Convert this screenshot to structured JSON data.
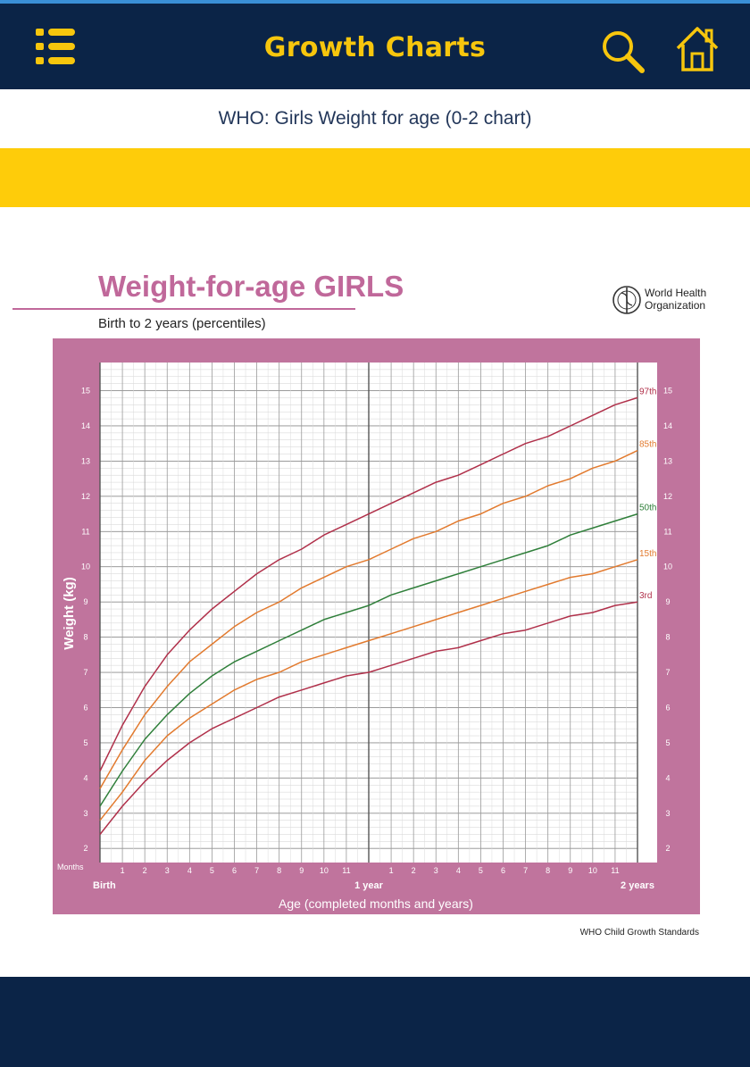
{
  "app": {
    "title": "Growth Charts",
    "subtitle": "WHO: Girls Weight for age (0-2 chart)",
    "icons": {
      "menu": "menu-list-icon",
      "search": "search-icon",
      "home": "home-icon"
    }
  },
  "colors": {
    "appbar": "#0b2447",
    "accent": "#f7c60d",
    "band": "#fecc0a",
    "chart_frame": "#c0749d",
    "title_pink": "#c0689a"
  },
  "chart_data": {
    "type": "line",
    "title": "Weight-for-age GIRLS",
    "subtitle": "Birth to 2 years (percentiles)",
    "organization": "World Health Organization",
    "footer": "WHO Child Growth Standards",
    "xlabel": "Age (completed months and years)",
    "ylabel": "Weight (kg)",
    "x_unit_label": "Months",
    "x_major_labels": [
      "Birth",
      "1 year",
      "2 years"
    ],
    "x_month_ticks": [
      "1",
      "2",
      "3",
      "4",
      "5",
      "6",
      "7",
      "8",
      "9",
      "10",
      "11",
      "",
      "1",
      "2",
      "3",
      "4",
      "5",
      "6",
      "7",
      "8",
      "9",
      "10",
      "11"
    ],
    "y_ticks": [
      2,
      3,
      4,
      5,
      6,
      7,
      8,
      9,
      10,
      11,
      12,
      13,
      14,
      15
    ],
    "xlim": [
      0,
      24
    ],
    "ylim": [
      1.6,
      15.8
    ],
    "x": [
      0,
      1,
      2,
      3,
      4,
      5,
      6,
      7,
      8,
      9,
      10,
      11,
      12,
      13,
      14,
      15,
      16,
      17,
      18,
      19,
      20,
      21,
      22,
      23,
      24
    ],
    "series": [
      {
        "name": "97th",
        "color": "#b0304a",
        "values": [
          4.2,
          5.5,
          6.6,
          7.5,
          8.2,
          8.8,
          9.3,
          9.8,
          10.2,
          10.5,
          10.9,
          11.2,
          11.5,
          11.8,
          12.1,
          12.4,
          12.6,
          12.9,
          13.2,
          13.5,
          13.7,
          14.0,
          14.3,
          14.6,
          14.8
        ]
      },
      {
        "name": "85th",
        "color": "#e27a2e",
        "values": [
          3.7,
          4.8,
          5.8,
          6.6,
          7.3,
          7.8,
          8.3,
          8.7,
          9.0,
          9.4,
          9.7,
          10.0,
          10.2,
          10.5,
          10.8,
          11.0,
          11.3,
          11.5,
          11.8,
          12.0,
          12.3,
          12.5,
          12.8,
          13.0,
          13.3
        ]
      },
      {
        "name": "50th",
        "color": "#2f7f3a",
        "values": [
          3.2,
          4.2,
          5.1,
          5.8,
          6.4,
          6.9,
          7.3,
          7.6,
          7.9,
          8.2,
          8.5,
          8.7,
          8.9,
          9.2,
          9.4,
          9.6,
          9.8,
          10.0,
          10.2,
          10.4,
          10.6,
          10.9,
          11.1,
          11.3,
          11.5
        ]
      },
      {
        "name": "15th",
        "color": "#e27a2e",
        "values": [
          2.8,
          3.6,
          4.5,
          5.2,
          5.7,
          6.1,
          6.5,
          6.8,
          7.0,
          7.3,
          7.5,
          7.7,
          7.9,
          8.1,
          8.3,
          8.5,
          8.7,
          8.9,
          9.1,
          9.3,
          9.5,
          9.7,
          9.8,
          10.0,
          10.2
        ]
      },
      {
        "name": "3rd",
        "color": "#b0304a",
        "values": [
          2.4,
          3.2,
          3.9,
          4.5,
          5.0,
          5.4,
          5.7,
          6.0,
          6.3,
          6.5,
          6.7,
          6.9,
          7.0,
          7.2,
          7.4,
          7.6,
          7.7,
          7.9,
          8.1,
          8.2,
          8.4,
          8.6,
          8.7,
          8.9,
          9.0
        ]
      }
    ]
  }
}
